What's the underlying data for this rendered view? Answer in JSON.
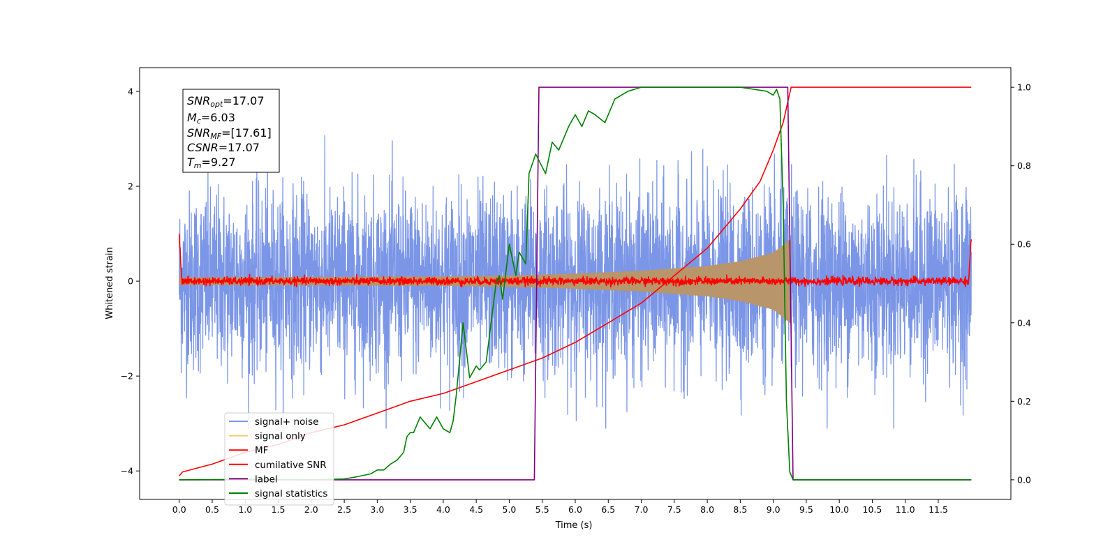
{
  "chart_data": {
    "type": "line",
    "xlabel": "Time (s)",
    "ylabel": "Whitened strain",
    "ylabel_right": "",
    "xlim": [
      -0.6,
      12.6
    ],
    "ylim": [
      -4.6,
      4.5
    ],
    "ylim_right": [
      -0.05,
      1.05
    ],
    "x_ticks": [
      "0.0",
      "0.5",
      "1.0",
      "1.5",
      "2.0",
      "2.5",
      "3.0",
      "3.5",
      "4.0",
      "4.5",
      "5.0",
      "5.5",
      "6.0",
      "6.5",
      "7.0",
      "7.5",
      "8.0",
      "8.5",
      "9.0",
      "9.5",
      "10.0",
      "10.5",
      "11.0",
      "11.5"
    ],
    "y_ticks_left": [
      "4",
      "2",
      "0",
      "−2",
      "−4"
    ],
    "y_ticks_right": [
      "1.0",
      "0.8",
      "0.6",
      "0.4",
      "0.2",
      "0.0"
    ],
    "annotations": {
      "snr_opt": {
        "sym": "SNR",
        "sub": "opt",
        "rest": "=17.07"
      },
      "mc": {
        "sym": "M",
        "sub": "c",
        "rest": "=6.03"
      },
      "snr_mf": {
        "sym": "SNR",
        "sub": "MF",
        "rest": "=[17.61]"
      },
      "csnr": {
        "sym": "CSNR",
        "sub": "",
        "rest": "=17.07"
      },
      "tm": {
        "sym": "T",
        "sub": "m",
        "rest": "=9.27"
      }
    },
    "legend_placement": "lower-left",
    "series": [
      {
        "name": "signal+ noise",
        "color": "#7b96e6",
        "axis": "left",
        "kind": "noise",
        "x_range": [
          0,
          12
        ],
        "typical_amplitude": 1.5,
        "max_amplitude": 3.1
      },
      {
        "name": "signal only",
        "color": "#ffc96a",
        "axis": "left",
        "kind": "chirp",
        "x_range": [
          0,
          9.27
        ],
        "envelope": [
          [
            0,
            0.08
          ],
          [
            2,
            0.09
          ],
          [
            4,
            0.1
          ],
          [
            5,
            0.12
          ],
          [
            6,
            0.16
          ],
          [
            7,
            0.22
          ],
          [
            8,
            0.32
          ],
          [
            8.5,
            0.42
          ],
          [
            9,
            0.6
          ],
          [
            9.27,
            0.9
          ]
        ]
      },
      {
        "name": "MF",
        "color": "#ff0000",
        "axis": "left",
        "kind": "mf",
        "x_range": [
          0,
          12
        ],
        "peak_start": 1.0,
        "peak_end": 0.95,
        "noise_amplitude": 0.07
      },
      {
        "name": "cumilative SNR",
        "color": "#ff0000",
        "axis": "right",
        "kind": "line",
        "points": [
          [
            0,
            0.01
          ],
          [
            0.05,
            0.02
          ],
          [
            0.5,
            0.04
          ],
          [
            1,
            0.07
          ],
          [
            1.5,
            0.09
          ],
          [
            2,
            0.12
          ],
          [
            2.5,
            0.14
          ],
          [
            3,
            0.17
          ],
          [
            3.5,
            0.2
          ],
          [
            4,
            0.22
          ],
          [
            4.5,
            0.25
          ],
          [
            5,
            0.28
          ],
          [
            5.5,
            0.31
          ],
          [
            6,
            0.35
          ],
          [
            6.5,
            0.4
          ],
          [
            7,
            0.45
          ],
          [
            7.5,
            0.52
          ],
          [
            8,
            0.59
          ],
          [
            8.5,
            0.69
          ],
          [
            8.8,
            0.76
          ],
          [
            9,
            0.84
          ],
          [
            9.15,
            0.91
          ],
          [
            9.27,
            1.0
          ],
          [
            12,
            1.0
          ]
        ]
      },
      {
        "name": "label",
        "color": "#800080",
        "axis": "right",
        "kind": "step",
        "points": [
          [
            0,
            0.0
          ],
          [
            5.38,
            0.0
          ],
          [
            5.45,
            1.0
          ],
          [
            9.22,
            1.0
          ],
          [
            9.3,
            0.0
          ],
          [
            12,
            0.0
          ]
        ]
      },
      {
        "name": "signal statistics",
        "color": "#008000",
        "axis": "right",
        "kind": "line",
        "points": [
          [
            0,
            0.0
          ],
          [
            1,
            0.001
          ],
          [
            2,
            0.0
          ],
          [
            2.5,
            0.002
          ],
          [
            2.7,
            0.008
          ],
          [
            2.9,
            0.015
          ],
          [
            3.0,
            0.025
          ],
          [
            3.1,
            0.025
          ],
          [
            3.2,
            0.04
          ],
          [
            3.3,
            0.05
          ],
          [
            3.4,
            0.07
          ],
          [
            3.45,
            0.11
          ],
          [
            3.5,
            0.12
          ],
          [
            3.55,
            0.12
          ],
          [
            3.6,
            0.14
          ],
          [
            3.65,
            0.16
          ],
          [
            3.7,
            0.15
          ],
          [
            3.8,
            0.13
          ],
          [
            3.9,
            0.16
          ],
          [
            4.0,
            0.13
          ],
          [
            4.1,
            0.12
          ],
          [
            4.15,
            0.15
          ],
          [
            4.2,
            0.22
          ],
          [
            4.3,
            0.4
          ],
          [
            4.4,
            0.26
          ],
          [
            4.5,
            0.29
          ],
          [
            4.55,
            0.28
          ],
          [
            4.65,
            0.3
          ],
          [
            4.8,
            0.5
          ],
          [
            4.85,
            0.52
          ],
          [
            4.9,
            0.46
          ],
          [
            5.0,
            0.6
          ],
          [
            5.1,
            0.52
          ],
          [
            5.15,
            0.58
          ],
          [
            5.25,
            0.55
          ],
          [
            5.3,
            0.78
          ],
          [
            5.4,
            0.83
          ],
          [
            5.55,
            0.78
          ],
          [
            5.65,
            0.86
          ],
          [
            5.75,
            0.84
          ],
          [
            5.9,
            0.9
          ],
          [
            6.0,
            0.93
          ],
          [
            6.1,
            0.9
          ],
          [
            6.2,
            0.94
          ],
          [
            6.3,
            0.93
          ],
          [
            6.45,
            0.91
          ],
          [
            6.5,
            0.93
          ],
          [
            6.6,
            0.97
          ],
          [
            6.8,
            0.99
          ],
          [
            7.0,
            1.0
          ],
          [
            7.5,
            1.0
          ],
          [
            8.0,
            1.0
          ],
          [
            8.5,
            1.0
          ],
          [
            8.9,
            0.99
          ],
          [
            9.0,
            0.98
          ],
          [
            9.05,
            0.995
          ],
          [
            9.1,
            0.97
          ],
          [
            9.15,
            0.7
          ],
          [
            9.2,
            0.2
          ],
          [
            9.25,
            0.02
          ],
          [
            9.3,
            0.0
          ],
          [
            12,
            0.0
          ]
        ]
      }
    ]
  }
}
